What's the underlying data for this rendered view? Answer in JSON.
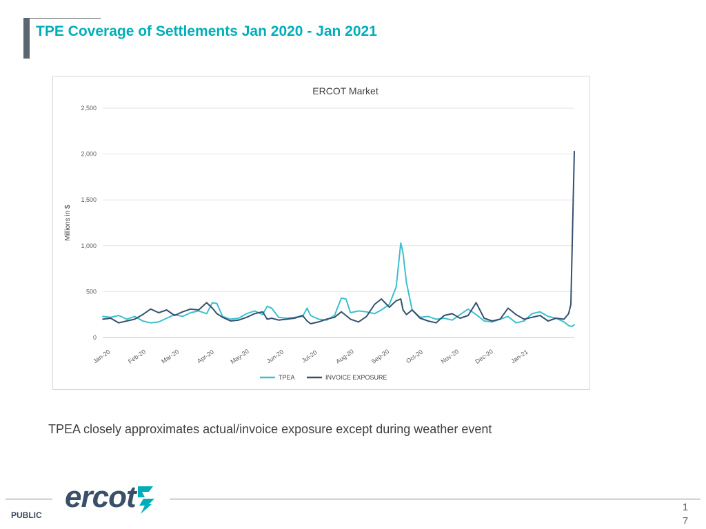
{
  "slide": {
    "title": "TPE Coverage of Settlements Jan 2020 - Jan 2021",
    "caption": "TPEA closely approximates actual/invoice exposure except during weather event",
    "footer_label": "PUBLIC",
    "page_number_digits": [
      "1",
      "7"
    ]
  },
  "logo": {
    "text": "ercot",
    "mark_icon": "ercot-lightning-mark",
    "colors": {
      "text": "#3a5068",
      "mark": "#00aeb9"
    }
  },
  "chart_data": {
    "type": "line",
    "title": "ERCOT Market",
    "xlabel": "",
    "ylabel": "Millions in $",
    "ylim": [
      0,
      2500
    ],
    "yticks": [
      0,
      500,
      1000,
      1500,
      2000,
      2500
    ],
    "ytick_labels": [
      "0",
      "500",
      "1,000",
      "1,500",
      "2,000",
      "2,500"
    ],
    "x_range": [
      "2020-01-01",
      "2021-02-17"
    ],
    "xtick_labels": [
      "Jan-20",
      "Feb-20",
      "Mar-20",
      "Apr-20",
      "May-20",
      "Jun-20",
      "Jul-20",
      "Aug-20",
      "Sep-20",
      "Oct-20",
      "Nov-20",
      "Dec-20",
      "Jan-21"
    ],
    "xtick_dates": [
      "2020-01-01",
      "2020-02-01",
      "2020-03-01",
      "2020-04-01",
      "2020-05-01",
      "2020-06-01",
      "2020-07-01",
      "2020-08-01",
      "2020-09-01",
      "2020-10-01",
      "2020-11-01",
      "2020-12-01",
      "2021-01-01"
    ],
    "grid": "horizontal",
    "legend_position": "bottom",
    "series": [
      {
        "name": "TPEA",
        "color": "#3bbfcf",
        "points": [
          [
            "2020-01-01",
            230
          ],
          [
            "2020-01-08",
            220
          ],
          [
            "2020-01-15",
            240
          ],
          [
            "2020-01-22",
            200
          ],
          [
            "2020-01-29",
            230
          ],
          [
            "2020-02-05",
            180
          ],
          [
            "2020-02-12",
            160
          ],
          [
            "2020-02-19",
            170
          ],
          [
            "2020-02-26",
            210
          ],
          [
            "2020-03-04",
            250
          ],
          [
            "2020-03-11",
            230
          ],
          [
            "2020-03-18",
            270
          ],
          [
            "2020-03-25",
            290
          ],
          [
            "2020-04-01",
            260
          ],
          [
            "2020-04-06",
            380
          ],
          [
            "2020-04-10",
            370
          ],
          [
            "2020-04-15",
            230
          ],
          [
            "2020-04-22",
            200
          ],
          [
            "2020-04-29",
            210
          ],
          [
            "2020-05-06",
            260
          ],
          [
            "2020-05-13",
            290
          ],
          [
            "2020-05-20",
            250
          ],
          [
            "2020-05-24",
            340
          ],
          [
            "2020-05-28",
            320
          ],
          [
            "2020-06-03",
            220
          ],
          [
            "2020-06-10",
            210
          ],
          [
            "2020-06-17",
            220
          ],
          [
            "2020-06-24",
            230
          ],
          [
            "2020-06-28",
            320
          ],
          [
            "2020-07-01",
            240
          ],
          [
            "2020-07-08",
            200
          ],
          [
            "2020-07-15",
            190
          ],
          [
            "2020-07-22",
            240
          ],
          [
            "2020-07-28",
            430
          ],
          [
            "2020-08-01",
            420
          ],
          [
            "2020-08-05",
            270
          ],
          [
            "2020-08-12",
            290
          ],
          [
            "2020-08-19",
            280
          ],
          [
            "2020-08-26",
            260
          ],
          [
            "2020-09-01",
            300
          ],
          [
            "2020-09-08",
            360
          ],
          [
            "2020-09-14",
            550
          ],
          [
            "2020-09-18",
            1030
          ],
          [
            "2020-09-20",
            920
          ],
          [
            "2020-09-23",
            600
          ],
          [
            "2020-09-28",
            300
          ],
          [
            "2020-10-05",
            220
          ],
          [
            "2020-10-12",
            230
          ],
          [
            "2020-10-19",
            200
          ],
          [
            "2020-10-26",
            210
          ],
          [
            "2020-11-02",
            190
          ],
          [
            "2020-11-09",
            250
          ],
          [
            "2020-11-16",
            310
          ],
          [
            "2020-11-23",
            250
          ],
          [
            "2020-11-30",
            180
          ],
          [
            "2020-12-07",
            170
          ],
          [
            "2020-12-14",
            200
          ],
          [
            "2020-12-21",
            230
          ],
          [
            "2020-12-28",
            160
          ],
          [
            "2021-01-04",
            180
          ],
          [
            "2021-01-11",
            260
          ],
          [
            "2021-01-18",
            280
          ],
          [
            "2021-01-25",
            230
          ],
          [
            "2021-02-01",
            210
          ],
          [
            "2021-02-08",
            170
          ],
          [
            "2021-02-12",
            130
          ],
          [
            "2021-02-15",
            120
          ],
          [
            "2021-02-17",
            140
          ]
        ]
      },
      {
        "name": "INVOICE EXPOSURE",
        "color": "#34506e",
        "points": [
          [
            "2020-01-01",
            200
          ],
          [
            "2020-01-08",
            210
          ],
          [
            "2020-01-15",
            160
          ],
          [
            "2020-01-22",
            180
          ],
          [
            "2020-01-29",
            200
          ],
          [
            "2020-02-05",
            250
          ],
          [
            "2020-02-12",
            310
          ],
          [
            "2020-02-19",
            270
          ],
          [
            "2020-02-26",
            300
          ],
          [
            "2020-03-04",
            240
          ],
          [
            "2020-03-11",
            280
          ],
          [
            "2020-03-18",
            310
          ],
          [
            "2020-03-25",
            300
          ],
          [
            "2020-04-01",
            380
          ],
          [
            "2020-04-06",
            320
          ],
          [
            "2020-04-10",
            260
          ],
          [
            "2020-04-15",
            220
          ],
          [
            "2020-04-22",
            180
          ],
          [
            "2020-04-29",
            190
          ],
          [
            "2020-05-06",
            220
          ],
          [
            "2020-05-13",
            260
          ],
          [
            "2020-05-20",
            280
          ],
          [
            "2020-05-24",
            200
          ],
          [
            "2020-05-28",
            210
          ],
          [
            "2020-06-03",
            190
          ],
          [
            "2020-06-10",
            200
          ],
          [
            "2020-06-17",
            210
          ],
          [
            "2020-06-24",
            240
          ],
          [
            "2020-06-28",
            180
          ],
          [
            "2020-07-01",
            150
          ],
          [
            "2020-07-08",
            170
          ],
          [
            "2020-07-15",
            200
          ],
          [
            "2020-07-22",
            220
          ],
          [
            "2020-07-28",
            280
          ],
          [
            "2020-08-01",
            240
          ],
          [
            "2020-08-05",
            200
          ],
          [
            "2020-08-12",
            170
          ],
          [
            "2020-08-19",
            230
          ],
          [
            "2020-08-26",
            360
          ],
          [
            "2020-09-01",
            420
          ],
          [
            "2020-09-08",
            330
          ],
          [
            "2020-09-14",
            400
          ],
          [
            "2020-09-18",
            420
          ],
          [
            "2020-09-20",
            300
          ],
          [
            "2020-09-23",
            250
          ],
          [
            "2020-09-28",
            300
          ],
          [
            "2020-10-05",
            210
          ],
          [
            "2020-10-12",
            180
          ],
          [
            "2020-10-19",
            160
          ],
          [
            "2020-10-26",
            240
          ],
          [
            "2020-11-02",
            260
          ],
          [
            "2020-11-09",
            210
          ],
          [
            "2020-11-16",
            240
          ],
          [
            "2020-11-23",
            380
          ],
          [
            "2020-11-30",
            210
          ],
          [
            "2020-12-07",
            180
          ],
          [
            "2020-12-14",
            200
          ],
          [
            "2020-12-21",
            320
          ],
          [
            "2020-12-28",
            250
          ],
          [
            "2021-01-04",
            200
          ],
          [
            "2021-01-11",
            220
          ],
          [
            "2021-01-18",
            240
          ],
          [
            "2021-01-25",
            180
          ],
          [
            "2021-02-01",
            210
          ],
          [
            "2021-02-08",
            200
          ],
          [
            "2021-02-12",
            260
          ],
          [
            "2021-02-14",
            360
          ],
          [
            "2021-02-17",
            2030
          ]
        ]
      }
    ]
  }
}
